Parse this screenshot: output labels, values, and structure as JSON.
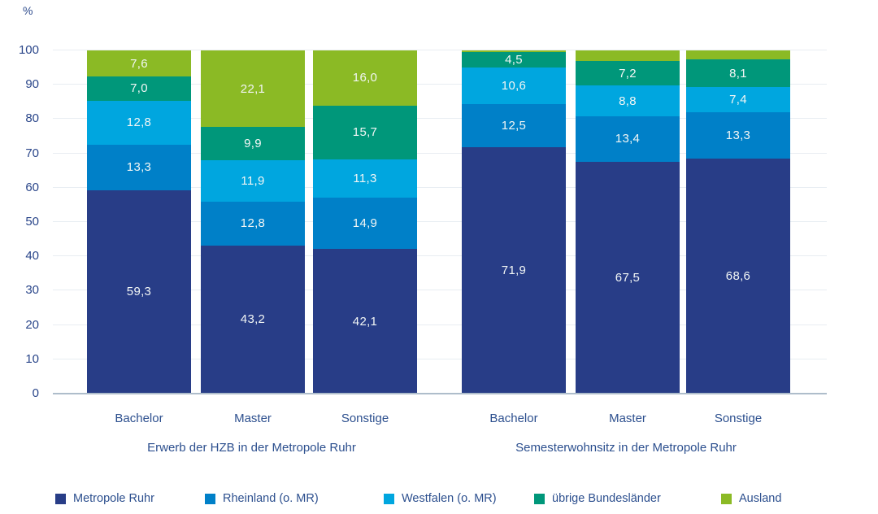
{
  "unit_label": "%",
  "chart_data": {
    "type": "bar",
    "stacked": true,
    "orientation": "vertical",
    "ylabel": "%",
    "ylim": [
      0,
      100
    ],
    "yticks": [
      0,
      10,
      20,
      30,
      40,
      50,
      60,
      70,
      80,
      90,
      100
    ],
    "grid": true,
    "legend_position": "bottom",
    "series": [
      {
        "name": "Metropole Ruhr",
        "color": "#283d87"
      },
      {
        "name": "Rheinland (o. MR)",
        "color": "#0080c8"
      },
      {
        "name": "Westfalen (o. MR)",
        "color": "#00a6df"
      },
      {
        "name": "übrige Bundesländer",
        "color": "#00977a"
      },
      {
        "name": "Ausland",
        "color": "#8bba25"
      }
    ],
    "groups": [
      {
        "title": "Erwerb der HZB in der Metropole Ruhr",
        "categories": [
          "Bachelor",
          "Master",
          "Sonstige"
        ],
        "bars": [
          {
            "category": "Bachelor",
            "values": [
              59.3,
              13.3,
              12.8,
              7.0,
              7.6
            ],
            "labels": [
              "59,3",
              "13,3",
              "12,8",
              "7,0",
              "7,6"
            ]
          },
          {
            "category": "Master",
            "values": [
              43.2,
              12.8,
              11.9,
              9.9,
              22.1
            ],
            "labels": [
              "43,2",
              "12,8",
              "11,9",
              "9,9",
              "22,1"
            ]
          },
          {
            "category": "Sonstige",
            "values": [
              42.1,
              14.9,
              11.3,
              15.7,
              16.0
            ],
            "labels": [
              "42,1",
              "14,9",
              "11,3",
              "15,7",
              "16,0"
            ]
          }
        ]
      },
      {
        "title": "Semesterwohnsitz in der Metropole Ruhr",
        "categories": [
          "Bachelor",
          "Master",
          "Sonstige"
        ],
        "bars": [
          {
            "category": "Bachelor",
            "values": [
              71.9,
              12.5,
              10.6,
              4.5,
              0.5
            ],
            "labels": [
              "71,9",
              "12,5",
              "10,6",
              "4,5",
              ""
            ]
          },
          {
            "category": "Master",
            "values": [
              67.5,
              13.4,
              8.8,
              7.2,
              3.1
            ],
            "labels": [
              "67,5",
              "13,4",
              "8,8",
              "7,2",
              ""
            ]
          },
          {
            "category": "Sonstige",
            "values": [
              68.6,
              13.3,
              7.4,
              8.1,
              2.6
            ],
            "labels": [
              "68,6",
              "13,3",
              "7,4",
              "8,1",
              ""
            ]
          }
        ]
      }
    ]
  }
}
